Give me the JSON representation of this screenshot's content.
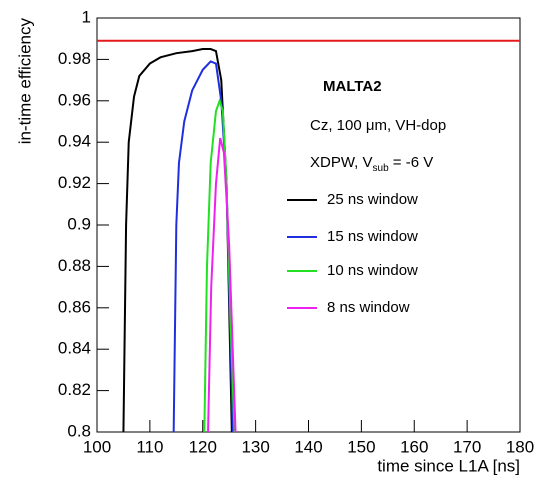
{
  "chart_data": {
    "type": "line",
    "xlabel": "time since L1A [ns]",
    "ylabel": "in-time efficiency",
    "xlim": [
      100,
      180
    ],
    "ylim": [
      0.8,
      1
    ],
    "xticks": [
      100,
      110,
      120,
      130,
      140,
      150,
      160,
      170,
      180
    ],
    "yticks": [
      0.8,
      0.82,
      0.84,
      0.86,
      0.88,
      0.9,
      0.92,
      0.94,
      0.96,
      0.98,
      1
    ],
    "hline": {
      "value": 0.989,
      "color": "#e41a1c"
    },
    "annotations": {
      "title": "MALTA2",
      "sample": "Cz, 100 μm, VH-dop",
      "bias": {
        "text": "XDPW, V",
        "sub": "sub",
        "rest": " = -6 V"
      }
    },
    "series": [
      {
        "name": "25 ns window",
        "color": "#000000",
        "x": [
          105,
          105.5,
          106,
          107,
          108,
          110,
          112,
          115,
          118,
          120,
          121.5,
          122.5,
          123.5,
          124.5,
          125.5
        ],
        "values": [
          0.8,
          0.9,
          0.94,
          0.962,
          0.972,
          0.978,
          0.981,
          0.983,
          0.984,
          0.985,
          0.985,
          0.984,
          0.97,
          0.92,
          0.8
        ]
      },
      {
        "name": "15 ns window",
        "color": "#1f2fe0",
        "x": [
          114.5,
          115,
          115.5,
          116.5,
          118,
          120,
          121.5,
          122.5,
          123.5,
          124.5,
          125.7
        ],
        "values": [
          0.8,
          0.9,
          0.93,
          0.95,
          0.965,
          0.975,
          0.979,
          0.978,
          0.96,
          0.92,
          0.8
        ]
      },
      {
        "name": "10 ns window",
        "color": "#22e022",
        "x": [
          120.3,
          120.8,
          121.5,
          122.5,
          123.2,
          123.8,
          124.5,
          125.3,
          126
        ],
        "values": [
          0.8,
          0.88,
          0.93,
          0.955,
          0.96,
          0.955,
          0.92,
          0.85,
          0.8
        ]
      },
      {
        "name": "8 ns window",
        "color": "#ee22ee",
        "x": [
          121,
          121.6,
          122.5,
          123.3,
          124,
          125,
          126.2
        ],
        "values": [
          0.8,
          0.87,
          0.92,
          0.942,
          0.935,
          0.89,
          0.8
        ]
      }
    ]
  }
}
